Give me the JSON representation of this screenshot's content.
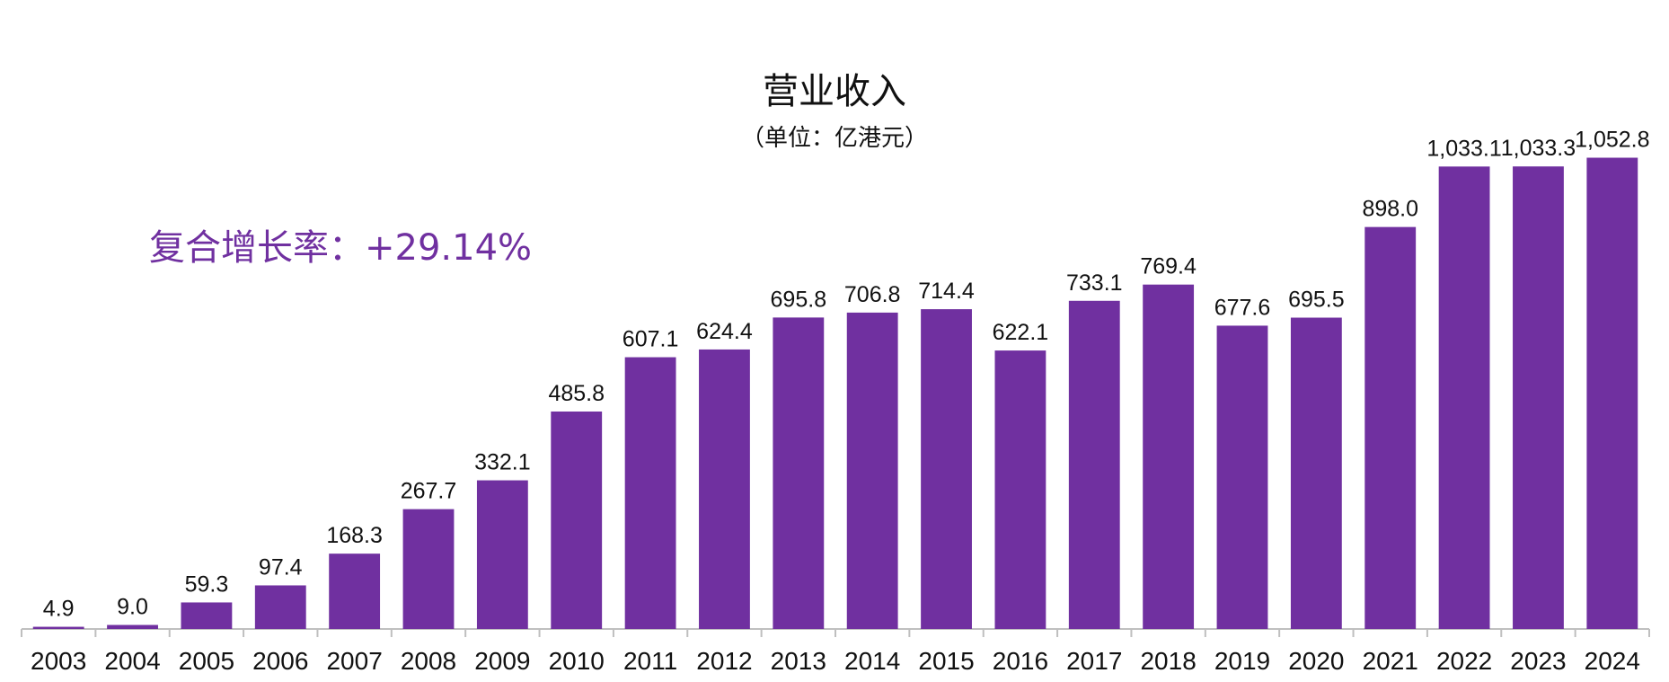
{
  "chart_data": {
    "type": "bar",
    "title": "营业收入",
    "subtitle": "（单位：亿港元）",
    "annotation": "复合增长率：+29.14%",
    "categories": [
      "2003",
      "2004",
      "2005",
      "2006",
      "2007",
      "2008",
      "2009",
      "2010",
      "2011",
      "2012",
      "2013",
      "2014",
      "2015",
      "2016",
      "2017",
      "2018",
      "2019",
      "2020",
      "2021",
      "2022",
      "2023",
      "2024"
    ],
    "values": [
      4.9,
      9.0,
      59.3,
      97.4,
      168.3,
      267.7,
      332.1,
      485.8,
      607.1,
      624.4,
      695.8,
      706.8,
      714.4,
      622.1,
      733.1,
      769.4,
      677.6,
      695.5,
      898.0,
      1033.1,
      1033.3,
      1052.8
    ],
    "value_labels": [
      "4.9",
      "9.0",
      "59.3",
      "97.4",
      "168.3",
      "267.7",
      "332.1",
      "485.8",
      "607.1",
      "624.4",
      "695.8",
      "706.8",
      "714.4",
      "622.1",
      "733.1",
      "769.4",
      "677.6",
      "695.5",
      "898.0",
      "1,033.1",
      "1,033.3",
      "1,052.8"
    ],
    "xlabel": "",
    "ylabel": "",
    "ylim": [
      0,
      1100
    ],
    "grid": false,
    "bar_color": "#7030a0",
    "annotation_color": "#7030a0"
  }
}
